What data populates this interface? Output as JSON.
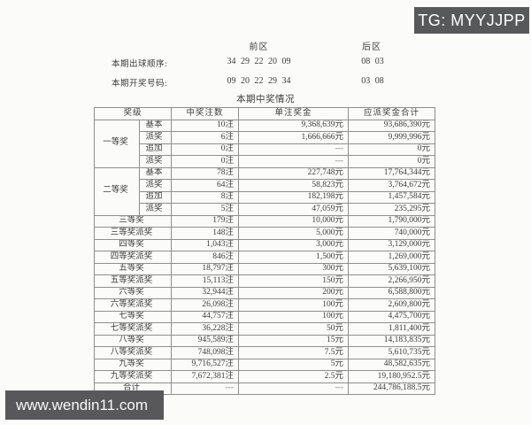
{
  "badge": {
    "text": "TG: MYYJJPP"
  },
  "watermark": {
    "text": "www.wendin11.com"
  },
  "top": {
    "front_zone": "前区",
    "back_zone": "后区",
    "order_label": "本期出球顺序:",
    "order_front": "34 29 22 20 09",
    "order_back": "08 03",
    "result_label": "本期开奖号码:",
    "result_front": "09 20 22 29 34",
    "result_back": "03 08",
    "section_title": "本期中奖情况"
  },
  "table": {
    "headers": [
      "奖级",
      "中奖注数",
      "单注奖金",
      "应派奖金合计"
    ],
    "groups": [
      {
        "name": "一等奖",
        "rows": [
          {
            "sub": "基本",
            "count": "10注",
            "per": "9,368,639元",
            "total": "93,686,390元"
          },
          {
            "sub": "派奖",
            "count": "6注",
            "per": "1,666,666元",
            "total": "9,999,996元"
          },
          {
            "sub": "追加",
            "count": "0注",
            "per": "---",
            "total": "0元"
          },
          {
            "sub": "派奖",
            "count": "0注",
            "per": "---",
            "total": "0元"
          }
        ]
      },
      {
        "name": "二等奖",
        "rows": [
          {
            "sub": "基本",
            "count": "78注",
            "per": "227,748元",
            "total": "17,764,344元"
          },
          {
            "sub": "派奖",
            "count": "64注",
            "per": "58,823元",
            "total": "3,764,672元"
          },
          {
            "sub": "追加",
            "count": "8注",
            "per": "182,198元",
            "total": "1,457,584元"
          },
          {
            "sub": "派奖",
            "count": "5注",
            "per": "47,059元",
            "total": "235,295元"
          }
        ]
      }
    ],
    "rows": [
      {
        "name": "三等奖",
        "count": "179注",
        "per": "10,000元",
        "total": "1,790,000元"
      },
      {
        "name": "三等奖派奖",
        "count": "148注",
        "per": "5,000元",
        "total": "740,000元"
      },
      {
        "name": "四等奖",
        "count": "1,043注",
        "per": "3,000元",
        "total": "3,129,000元"
      },
      {
        "name": "四等奖派奖",
        "count": "846注",
        "per": "1,500元",
        "total": "1,269,000元"
      },
      {
        "name": "五等奖",
        "count": "18,797注",
        "per": "300元",
        "total": "5,639,100元"
      },
      {
        "name": "五等奖派奖",
        "count": "15,113注",
        "per": "150元",
        "total": "2,266,950元"
      },
      {
        "name": "六等奖",
        "count": "32,944注",
        "per": "200元",
        "total": "6,588,800元"
      },
      {
        "name": "六等奖派奖",
        "count": "26,098注",
        "per": "100元",
        "total": "2,609,800元"
      },
      {
        "name": "七等奖",
        "count": "44,757注",
        "per": "100元",
        "total": "4,475,700元"
      },
      {
        "name": "七等奖派奖",
        "count": "36,228注",
        "per": "50元",
        "total": "1,811,400元"
      },
      {
        "name": "八等奖",
        "count": "945,589注",
        "per": "15元",
        "total": "14,183,835元"
      },
      {
        "name": "八等奖派奖",
        "count": "748,098注",
        "per": "7.5元",
        "total": "5,610,735元"
      },
      {
        "name": "九等奖",
        "count": "9,716,527注",
        "per": "5元",
        "total": "48,582,635元"
      },
      {
        "name": "九等奖派奖",
        "count": "7,672,381注",
        "per": "2.5元",
        "total": "19,180,952.5元"
      }
    ],
    "total_row": {
      "name": "合计",
      "count": "---",
      "per": "---",
      "total": "244,786,188.5元"
    }
  },
  "colors": {
    "page_bg": "#fbfbfa",
    "overlay_bg": "#57585a",
    "table_border": "#8f8f8f",
    "text": "#3c3c3c"
  }
}
